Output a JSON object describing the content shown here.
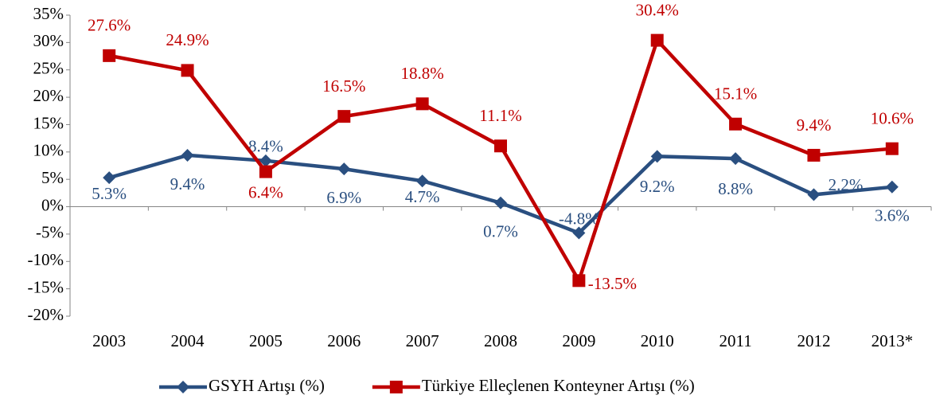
{
  "chart_data": {
    "type": "line",
    "categories": [
      "2003",
      "2004",
      "2005",
      "2006",
      "2007",
      "2008",
      "2009",
      "2010",
      "2011",
      "2012",
      "2013*"
    ],
    "series": [
      {
        "name": "GSYH Artışı (%)",
        "color": "#2a4f80",
        "marker": "diamond",
        "values": [
          5.3,
          9.4,
          8.4,
          6.9,
          4.7,
          0.7,
          -4.8,
          9.2,
          8.8,
          2.2,
          3.6
        ],
        "value_labels": [
          "5.3%",
          "9.4%",
          "8.4%",
          "6.9%",
          "4.7%",
          "0.7%",
          "-4.8%",
          "9.2%",
          "8.8%",
          "2.2%",
          "3.6%"
        ]
      },
      {
        "name": "Türkiye Elleçlenen Konteyner Artışı (%)",
        "color": "#c00000",
        "marker": "square",
        "values": [
          27.6,
          24.9,
          6.4,
          16.5,
          18.8,
          11.1,
          -13.5,
          30.4,
          15.1,
          9.4,
          10.6
        ],
        "value_labels": [
          "27.6%",
          "24.9%",
          "6.4%",
          "16.5%",
          "18.8%",
          "11.1%",
          "-13.5%",
          "30.4%",
          "15.1%",
          "9.4%",
          "10.6%"
        ]
      }
    ],
    "ylim": [
      -20,
      35
    ],
    "yticks": [
      {
        "value": -20,
        "label": "-20%"
      },
      {
        "value": -15,
        "label": "-15%"
      },
      {
        "value": -10,
        "label": "-10%"
      },
      {
        "value": -5,
        "label": "-5%"
      },
      {
        "value": 0,
        "label": "0%"
      },
      {
        "value": 5,
        "label": "5%"
      },
      {
        "value": 10,
        "label": "10%"
      },
      {
        "value": 15,
        "label": "15%"
      },
      {
        "value": 20,
        "label": "20%"
      },
      {
        "value": 25,
        "label": "25%"
      },
      {
        "value": 30,
        "label": "30%"
      },
      {
        "value": 35,
        "label": "35%"
      }
    ],
    "legend": "bottom"
  }
}
